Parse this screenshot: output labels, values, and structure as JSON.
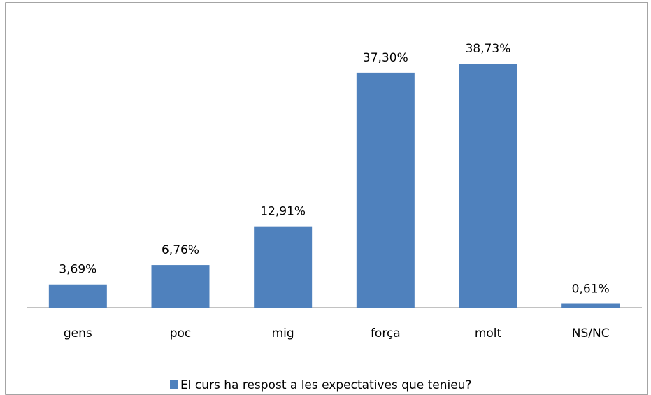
{
  "chart_data": {
    "type": "bar",
    "categories": [
      "gens",
      "poc",
      "mig",
      "força",
      "molt",
      "NS/NC"
    ],
    "series": [
      {
        "name": "El curs ha respost a les expectatives que tenieu?",
        "color": "#4f81bd",
        "values": [
          3.69,
          6.76,
          12.91,
          37.3,
          38.73,
          0.61
        ],
        "value_labels": [
          "3,69%",
          "6,76%",
          "12,91%",
          "37,30%",
          "38,73%",
          "0,61%"
        ]
      }
    ],
    "legend": "bottom"
  }
}
